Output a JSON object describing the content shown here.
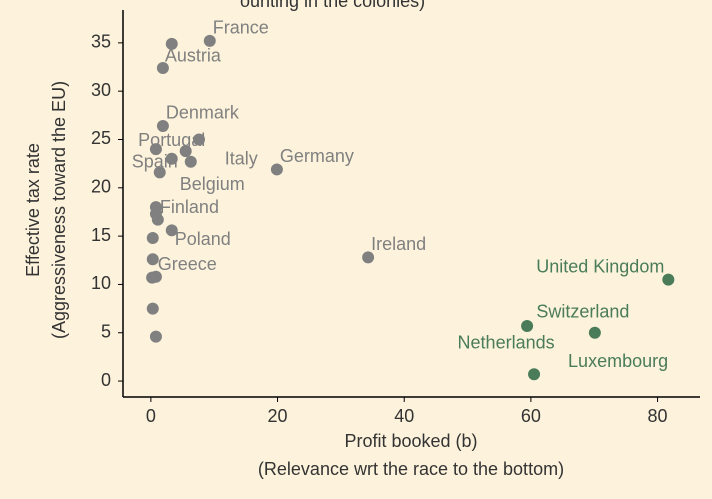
{
  "chart_data": {
    "type": "scatter",
    "title": "ounting in the colonies)",
    "xlabel": [
      "Profit booked (b)",
      "(Relevance wrt the race to the bottom)"
    ],
    "ylabel": [
      "Effective tax rate",
      "(Aggressiveness toward the EU)"
    ],
    "xlim": [
      -4.4,
      86.7
    ],
    "ylim": [
      -1.65,
      38.4
    ],
    "xticks": [
      0,
      20,
      40,
      60,
      80
    ],
    "yticks": [
      0,
      5,
      10,
      15,
      20,
      25,
      30,
      35
    ],
    "series": [
      {
        "color": "#808080",
        "x": [
          9.3,
          3.3,
          1.9,
          1.9,
          5.5,
          7.6,
          0.8,
          3.3,
          6.3,
          19.9,
          1.4,
          0.8,
          0.8,
          1.1,
          3.3,
          0.3,
          0.3,
          0.2,
          0.8,
          0.3,
          0.8,
          34.3
        ],
        "values": [
          35.2,
          34.9,
          32.4,
          26.4,
          23.8,
          25.0,
          24.0,
          23.0,
          22.7,
          21.9,
          21.6,
          18.0,
          17.3,
          16.7,
          15.6,
          14.8,
          12.6,
          10.7,
          10.8,
          7.5,
          4.6,
          12.8
        ],
        "labels": [
          "France",
          null,
          "Austria",
          "Denmark",
          "Portugal",
          null,
          null,
          "Spain",
          "Italy",
          "Germany",
          "Belgium",
          "Finland",
          null,
          null,
          "Poland",
          null,
          "Greece",
          null,
          null,
          null,
          null,
          "Ireland"
        ]
      },
      {
        "color": "#4a7c59",
        "x": [
          81.7,
          70.1,
          59.4,
          60.5
        ],
        "values": [
          10.5,
          5.0,
          5.7,
          0.7
        ],
        "labels": [
          "United Kingdom",
          "Switzerland",
          "Netherlands",
          "Luxembourg"
        ]
      }
    ]
  }
}
